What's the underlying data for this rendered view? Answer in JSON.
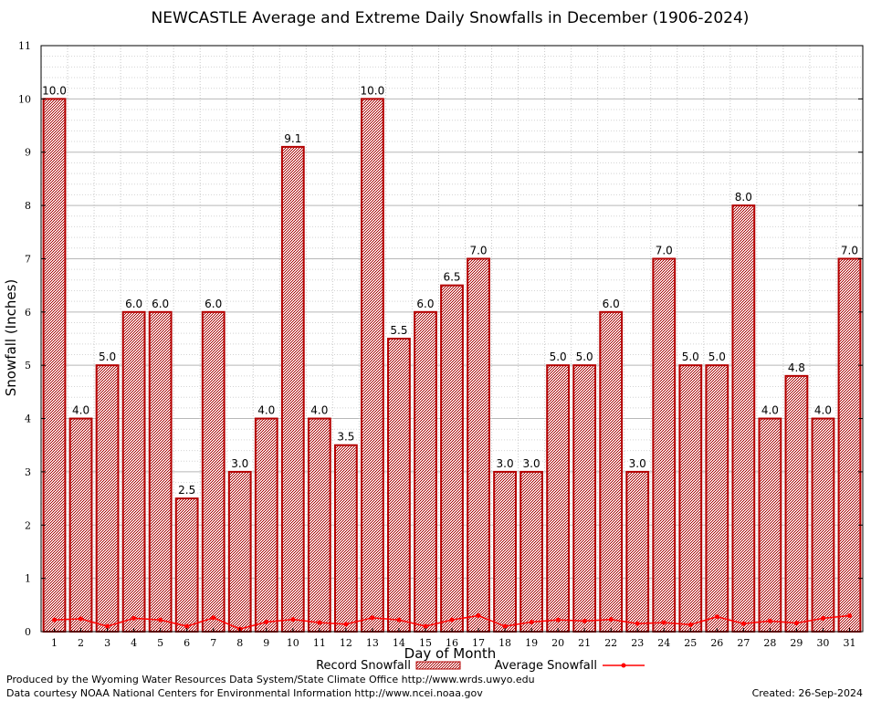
{
  "chart_data": {
    "type": "bar",
    "title": "NEWCASTLE Average and Extreme Daily Snowfalls in December (1906-2024)",
    "xlabel": "Day of Month",
    "ylabel": "Snowfall (Inches)",
    "ylim": [
      0,
      11
    ],
    "yticks": [
      "0",
      "1",
      "2",
      "3",
      "4",
      "5",
      "6",
      "7",
      "8",
      "9",
      "10",
      "11"
    ],
    "categories": [
      "1",
      "2",
      "3",
      "4",
      "5",
      "6",
      "7",
      "8",
      "9",
      "10",
      "11",
      "12",
      "13",
      "14",
      "15",
      "16",
      "17",
      "18",
      "19",
      "20",
      "21",
      "22",
      "23",
      "24",
      "25",
      "26",
      "27",
      "28",
      "29",
      "30",
      "31"
    ],
    "grid": true,
    "legend_position": "bottom",
    "series": [
      {
        "name": "Record Snowfall",
        "type": "bar",
        "color": "#b40000",
        "values": [
          10.0,
          4.0,
          5.0,
          6.0,
          6.0,
          2.5,
          6.0,
          3.0,
          4.0,
          9.1,
          4.0,
          3.5,
          10.0,
          5.5,
          6.0,
          6.5,
          7.0,
          3.0,
          3.0,
          5.0,
          5.0,
          6.0,
          3.0,
          7.0,
          5.0,
          5.0,
          8.0,
          4.0,
          4.8,
          4.0,
          7.0
        ],
        "labels": [
          "10.0",
          "4.0",
          "5.0",
          "6.0",
          "6.0",
          "2.5",
          "6.0",
          "3.0",
          "4.0",
          "9.1",
          "4.0",
          "3.5",
          "10.0",
          "5.5",
          "6.0",
          "6.5",
          "7.0",
          "3.0",
          "3.0",
          "5.0",
          "5.0",
          "6.0",
          "3.0",
          "7.0",
          "5.0",
          "5.0",
          "8.0",
          "4.0",
          "4.8",
          "4.0",
          "7.0"
        ]
      },
      {
        "name": "Average Snowfall",
        "type": "line",
        "color": "#ff0000",
        "values": [
          0.22,
          0.24,
          0.1,
          0.25,
          0.22,
          0.1,
          0.26,
          0.05,
          0.18,
          0.23,
          0.17,
          0.14,
          0.26,
          0.22,
          0.1,
          0.22,
          0.3,
          0.1,
          0.18,
          0.22,
          0.2,
          0.23,
          0.15,
          0.17,
          0.13,
          0.28,
          0.15,
          0.2,
          0.16,
          0.25,
          0.3
        ]
      }
    ]
  },
  "footer": {
    "line1": "Produced by the Wyoming Water Resources Data System/State Climate Office http://www.wrds.uwyo.edu",
    "line2": "Data courtesy NOAA National Centers for Environmental Information http://www.ncei.noaa.gov",
    "created": "Created:  26-Sep-2024"
  }
}
